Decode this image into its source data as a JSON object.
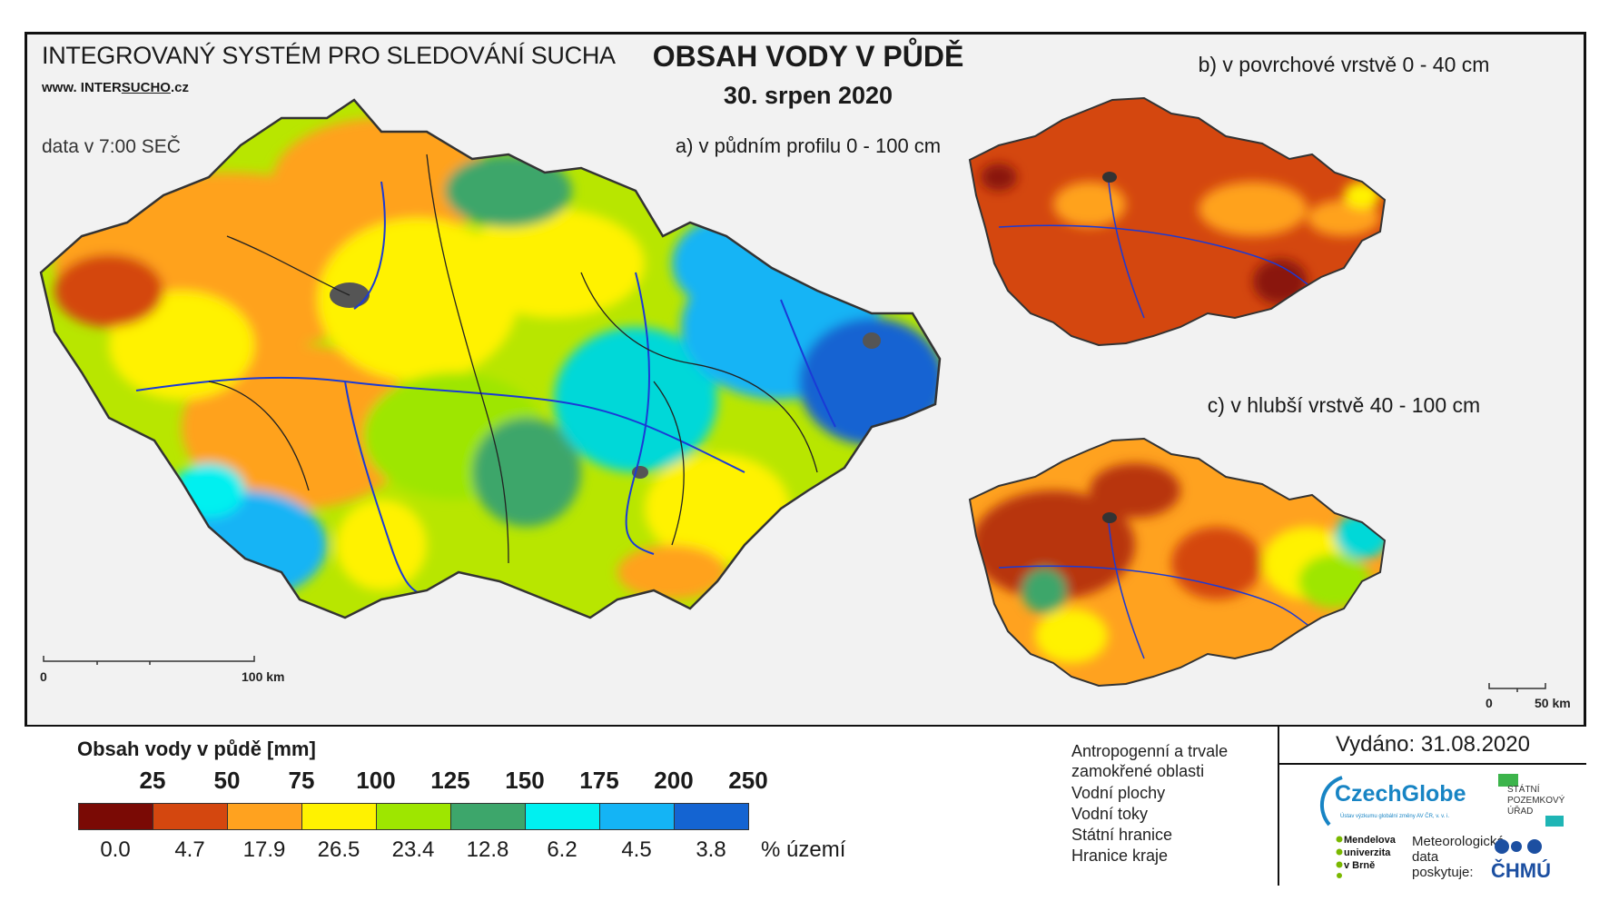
{
  "header": {
    "system_title": "INTEGROVANÝ SYSTÉM PRO SLEDOVÁNÍ SUCHA",
    "website_prefix": "www. INTER",
    "website_mid": "SUCHO",
    "website_suffix": ".cz",
    "data_time": "data v 7:00 SEČ",
    "title": "OBSAH VODY V PŮDĚ",
    "date": "30. srpen 2020"
  },
  "maps": {
    "a_label": "a) v půdním profilu 0 - 100 cm",
    "b_label": "b) v povrchové vrstvě 0 - 40 cm",
    "c_label": "c) v hlubší vrstvě 40 - 100 cm",
    "scale_main": [
      "0",
      "100 km"
    ],
    "scale_small": [
      "0",
      "50 km"
    ]
  },
  "legend": {
    "title": "Obsah vody v půdě  [mm]",
    "class_limits": [
      "25",
      "50",
      "75",
      "100",
      "125",
      "150",
      "175",
      "200",
      "250"
    ],
    "classes": [
      {
        "color": "#7a0a05",
        "percent": "0.0"
      },
      {
        "color": "#d4470f",
        "percent": "4.7"
      },
      {
        "color": "#ffa21f",
        "percent": "17.9"
      },
      {
        "color": "#fff200",
        "percent": "26.5"
      },
      {
        "color": "#9ee600",
        "percent": "23.4"
      },
      {
        "color": "#3da66b",
        "percent": "12.8"
      },
      {
        "color": "#00f0f0",
        "percent": "6.2"
      },
      {
        "color": "#14b4f5",
        "percent": "4.5"
      },
      {
        "color": "#1464d2",
        "percent": "3.8"
      }
    ],
    "percent_unit": "% území",
    "symbols": [
      {
        "icon": "wetland-icon",
        "label": "Antropogenní a trvale zamokřené oblasti"
      },
      {
        "icon": "water-body-icon",
        "label": "Vodní plochy"
      },
      {
        "icon": "river-icon",
        "label": "Vodní toky"
      },
      {
        "icon": "state-border-icon",
        "label": "Státní hranice"
      },
      {
        "icon": "region-border-icon",
        "label": "Hranice kraje"
      }
    ]
  },
  "footer": {
    "issued": "Vydáno: 31.08.2020",
    "czechglobe": "CzechGlobe",
    "czechglobe_sub": "Ústav výzkumu globální změny AV ČR, v. v. i.",
    "spu": [
      "STÁTNÍ",
      "POZEMKOVÝ",
      "ÚŘAD"
    ],
    "mendel": [
      "Mendelova",
      "univerzita",
      "v Brně"
    ],
    "meteo": [
      "Meteorologická",
      "data",
      "poskytuje:"
    ],
    "chmu": "ČHMÚ"
  }
}
